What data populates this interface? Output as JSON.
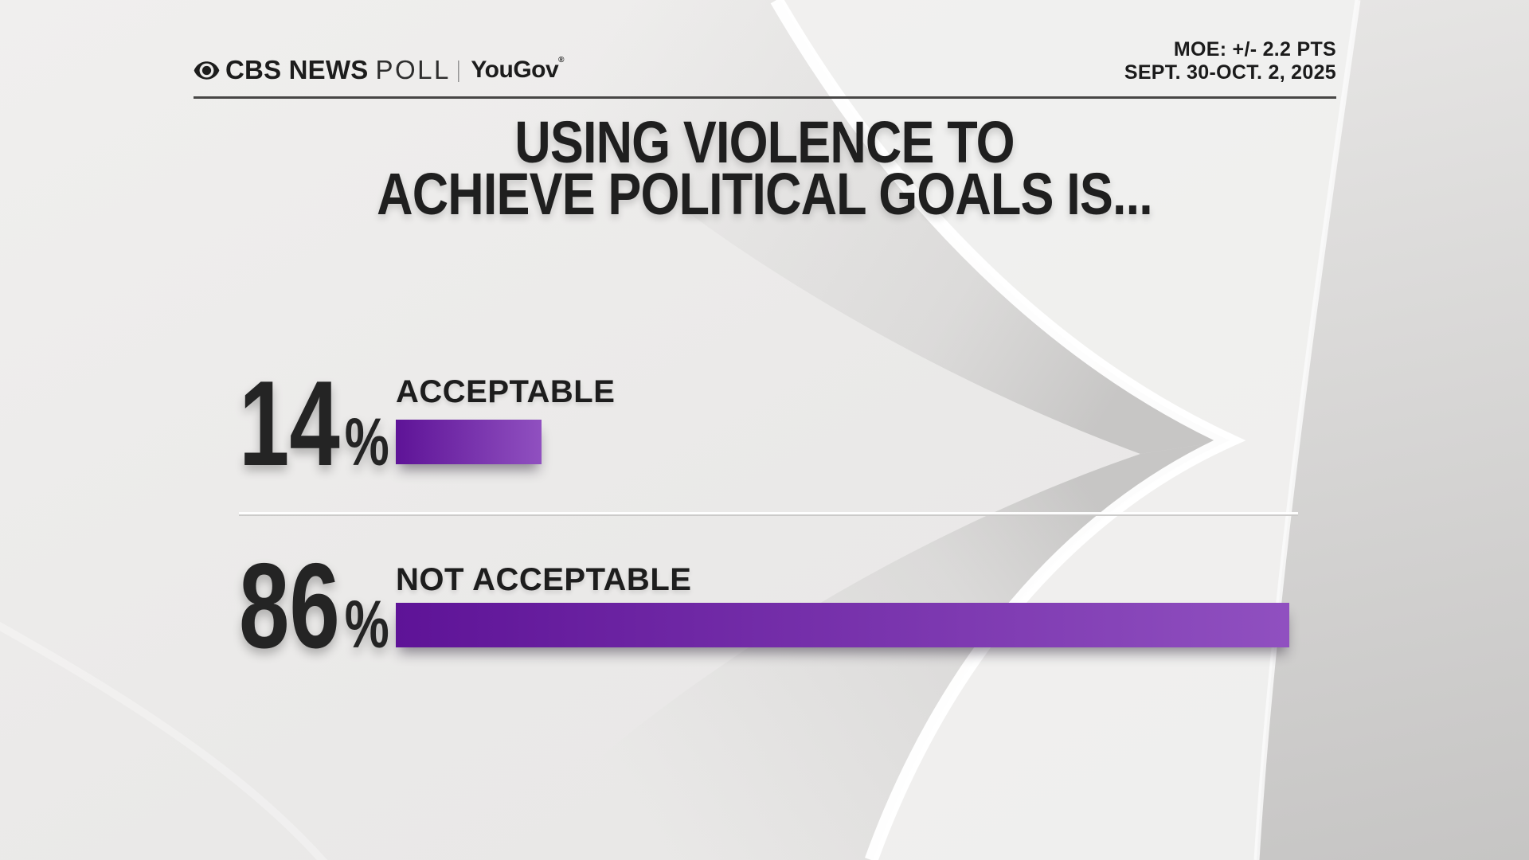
{
  "header": {
    "brand_cbs": "CBS NEWS",
    "brand_poll": "POLL",
    "brand_separator": "|",
    "brand_partner": "YouGov",
    "brand_reg": "®",
    "moe": "MOE: +/- 2.2 PTS",
    "dates": "SEPT. 30-OCT. 2, 2025"
  },
  "title": {
    "line1": "USING VIOLENCE TO",
    "line2": "ACHIEVE POLITICAL GOALS IS..."
  },
  "chart_data": {
    "type": "bar",
    "orientation": "horizontal",
    "title": "USING VIOLENCE TO ACHIEVE POLITICAL GOALS IS...",
    "categories": [
      "ACCEPTABLE",
      "NOT ACCEPTABLE"
    ],
    "values": [
      14,
      86
    ],
    "unit": "%",
    "value_axis_max": 86,
    "legend": "none",
    "grid": "off",
    "moe": "+/- 2.2 PTS",
    "field_dates": "SEPT. 30-OCT. 2, 2025",
    "source": "CBS NEWS POLL | YouGov"
  },
  "colors": {
    "bar_gradient_start": "#5e1397",
    "bar_gradient_end": "#9050c0",
    "text_dark": "#1f1f1f",
    "background": "#ebeae9"
  }
}
